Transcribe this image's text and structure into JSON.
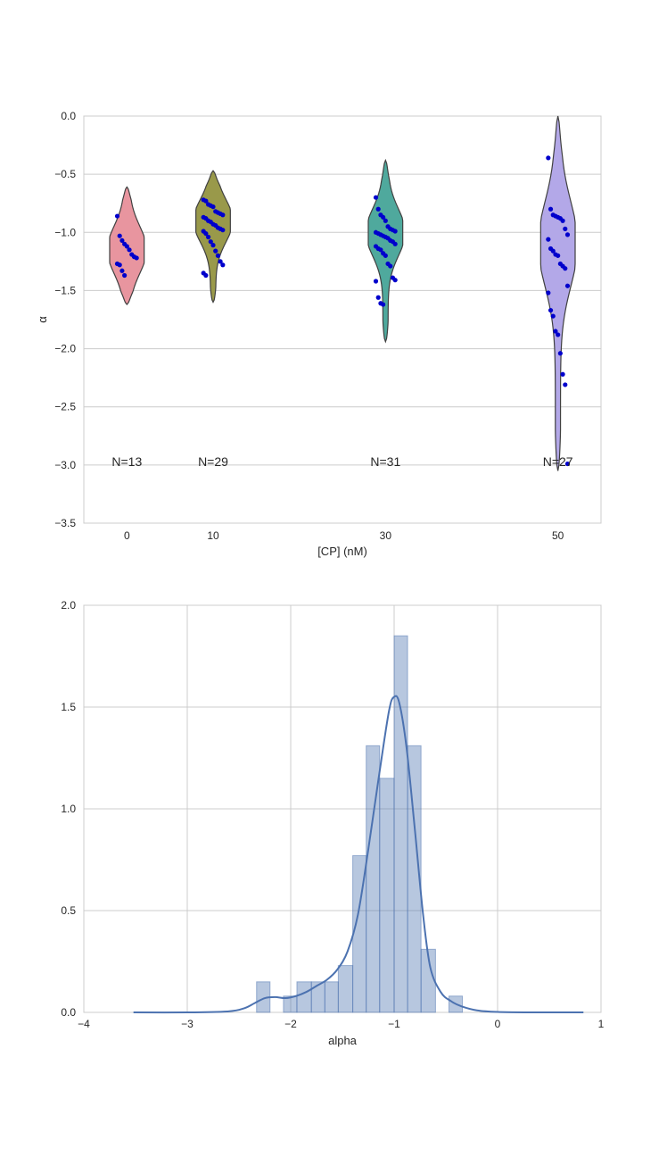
{
  "chart_data": [
    {
      "type": "violin",
      "xlabel": "[CP] (nM)",
      "ylabel": "α",
      "ylim": [
        -3.5,
        0.0
      ],
      "yticks": [
        "0.0",
        "−0.5",
        "−1.0",
        "−1.5",
        "−2.0",
        "−2.5",
        "−3.0",
        "−3.5"
      ],
      "yticks_values": [
        0.0,
        -0.5,
        -1.0,
        -1.5,
        -2.0,
        -2.5,
        -3.0,
        -3.5
      ],
      "categories": [
        "0",
        "10",
        "30",
        "50"
      ],
      "category_positions": [
        0,
        10,
        30,
        50
      ],
      "xlim": [
        -5,
        55
      ],
      "grid": "horizontal",
      "count_labels": [
        "N=13",
        "N=29",
        "N=31",
        "N=27"
      ],
      "count_label_y": -2.97,
      "violins": [
        {
          "category": "0",
          "color": "#e8959f",
          "ymin": -1.62,
          "ymax": -0.61,
          "mode": -1.15,
          "max_halfwidth": 2.0,
          "spread": 0.2
        },
        {
          "category": "10",
          "color": "#99994a",
          "ymin": -1.6,
          "ymax": -0.47,
          "mode": -0.9,
          "max_halfwidth": 2.0,
          "spread": 0.18
        },
        {
          "category": "30",
          "color": "#4fa99d",
          "ymin": -1.94,
          "ymax": -0.38,
          "mode": -1.0,
          "max_halfwidth": 2.0,
          "spread": 0.2
        },
        {
          "category": "50",
          "color": "#b3a8e8",
          "ymin": -3.05,
          "ymax": 0.0,
          "mode": -1.1,
          "max_halfwidth": 2.0,
          "spread": 0.36
        }
      ],
      "points": [
        {
          "category": "0",
          "values": [
            -0.86,
            -1.03,
            -1.07,
            -1.1,
            -1.12,
            -1.15,
            -1.19,
            -1.21,
            -1.22,
            -1.27,
            -1.28,
            -1.33,
            -1.37
          ]
        },
        {
          "category": "10",
          "values": [
            -0.72,
            -0.73,
            -0.76,
            -0.77,
            -0.78,
            -0.82,
            -0.83,
            -0.84,
            -0.85,
            -0.87,
            -0.88,
            -0.9,
            -0.91,
            -0.93,
            -0.94,
            -0.96,
            -0.97,
            -0.98,
            -0.99,
            -1.01,
            -1.04,
            -1.08,
            -1.11,
            -1.16,
            -1.2,
            -1.25,
            -1.28,
            -1.35,
            -1.37
          ]
        },
        {
          "category": "30",
          "values": [
            -0.7,
            -0.8,
            -0.85,
            -0.87,
            -0.9,
            -0.95,
            -0.97,
            -0.98,
            -0.99,
            -1.0,
            -1.01,
            -1.02,
            -1.03,
            -1.04,
            -1.05,
            -1.07,
            -1.08,
            -1.1,
            -1.12,
            -1.14,
            -1.15,
            -1.18,
            -1.2,
            -1.27,
            -1.29,
            -1.39,
            -1.41,
            -1.42,
            -1.56,
            -1.61,
            -1.62
          ]
        },
        {
          "category": "50",
          "values": [
            -0.36,
            -0.8,
            -0.85,
            -0.86,
            -0.87,
            -0.88,
            -0.9,
            -0.97,
            -1.02,
            -1.06,
            -1.14,
            -1.16,
            -1.19,
            -1.2,
            -1.27,
            -1.29,
            -1.31,
            -1.46,
            -1.52,
            -1.67,
            -1.72,
            -1.85,
            -1.88,
            -2.04,
            -2.22,
            -2.31,
            -2.99
          ]
        }
      ],
      "point_color": "#0000cc"
    },
    {
      "type": "histogram",
      "xlabel": "alpha",
      "ylabel": "",
      "xlim": [
        -4,
        1
      ],
      "ylim": [
        0,
        2.0
      ],
      "xticks": [
        "−4",
        "−3",
        "−2",
        "−1",
        "0",
        "1"
      ],
      "xticks_values": [
        -4,
        -3,
        -2,
        -1,
        0,
        1
      ],
      "yticks": [
        "0.0",
        "0.5",
        "1.0",
        "1.5",
        "2.0"
      ],
      "yticks_values": [
        0.0,
        0.5,
        1.0,
        1.5,
        2.0
      ],
      "grid": "both",
      "bar_color": "#4c72b0",
      "bins": [
        {
          "x0": -2.33,
          "x1": -2.2,
          "density": 0.15
        },
        {
          "x0": -2.07,
          "x1": -1.94,
          "density": 0.08
        },
        {
          "x0": -1.94,
          "x1": -1.8,
          "density": 0.15
        },
        {
          "x0": -1.8,
          "x1": -1.67,
          "density": 0.15
        },
        {
          "x0": -1.67,
          "x1": -1.54,
          "density": 0.15
        },
        {
          "x0": -1.54,
          "x1": -1.4,
          "density": 0.23
        },
        {
          "x0": -1.4,
          "x1": -1.27,
          "density": 0.77
        },
        {
          "x0": -1.27,
          "x1": -1.14,
          "density": 1.31
        },
        {
          "x0": -1.14,
          "x1": -1.0,
          "density": 1.15
        },
        {
          "x0": -1.0,
          "x1": -0.87,
          "density": 1.85
        },
        {
          "x0": -0.87,
          "x1": -0.74,
          "density": 1.31
        },
        {
          "x0": -0.74,
          "x1": -0.6,
          "density": 0.31
        },
        {
          "x0": -0.47,
          "x1": -0.34,
          "density": 0.08
        }
      ],
      "kde": {
        "color": "#4c72b0",
        "x": [
          -3.52,
          -3.0,
          -2.6,
          -2.45,
          -2.35,
          -2.25,
          -2.15,
          -2.05,
          -1.95,
          -1.85,
          -1.75,
          -1.65,
          -1.55,
          -1.45,
          -1.35,
          -1.25,
          -1.15,
          -1.05,
          -1.0,
          -0.95,
          -0.88,
          -0.8,
          -0.72,
          -0.65,
          -0.55,
          -0.45,
          -0.35,
          -0.2,
          0.0,
          0.3,
          0.83
        ],
        "y": [
          0.0,
          0.0,
          0.005,
          0.02,
          0.045,
          0.07,
          0.075,
          0.07,
          0.08,
          0.1,
          0.13,
          0.16,
          0.21,
          0.3,
          0.48,
          0.8,
          1.15,
          1.48,
          1.55,
          1.52,
          1.3,
          0.9,
          0.48,
          0.22,
          0.1,
          0.055,
          0.03,
          0.01,
          0.002,
          0.0,
          0.0
        ]
      }
    }
  ]
}
